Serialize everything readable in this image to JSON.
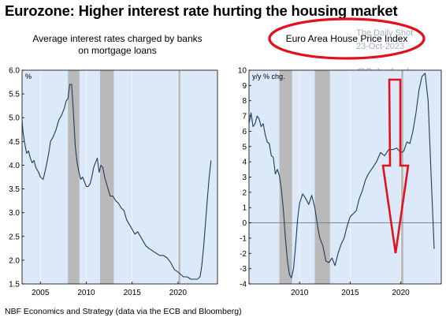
{
  "main_title": "Eurozone: Higher interest rate hurting the housing market",
  "footer": "NBF Economics and Strategy (data via the ECB and Bloomberg)",
  "watermark": {
    "site": "The Daily Shot",
    "date": "23-Oct-2023",
    "handle": "@SoberLook"
  },
  "colors": {
    "plot_bg": "#dce9f8",
    "line": "#1f3a5a",
    "recession": "#b9b9b9",
    "annotation": "#e3111d"
  },
  "chart_data": [
    {
      "type": "line",
      "subtitle_line1": "Average interest rates charged by banks",
      "subtitle_line2": "on mortgage loans",
      "unit_label": "%",
      "ylim": [
        1.5,
        6.0
      ],
      "xlim": [
        2003,
        2024.3
      ],
      "yticks": [
        "1.5",
        "2.0",
        "2.5",
        "3.0",
        "3.5",
        "4.0",
        "4.5",
        "5.0",
        "5.5",
        "6.0"
      ],
      "xticks": [
        "2005",
        "2010",
        "2015",
        "2020"
      ],
      "recessions": [
        [
          2008.0,
          2009.25
        ],
        [
          2011.5,
          2013.0
        ],
        [
          2020.0,
          2020.25
        ]
      ],
      "series": [
        {
          "x": [
            2003.0,
            2003.1,
            2003.3,
            2003.5,
            2003.7,
            2003.9,
            2004.1,
            2004.3,
            2004.5,
            2004.8,
            2005.0,
            2005.3,
            2005.6,
            2005.9,
            2006.1,
            2006.4,
            2006.7,
            2007.0,
            2007.3,
            2007.6,
            2007.8,
            2008.0,
            2008.2,
            2008.4,
            2008.6,
            2008.8,
            2009.0,
            2009.2,
            2009.4,
            2009.6,
            2009.8,
            2010.0,
            2010.2,
            2010.4,
            2010.6,
            2010.8,
            2011.0,
            2011.2,
            2011.4,
            2011.6,
            2011.8,
            2012.0,
            2012.3,
            2012.6,
            2012.9,
            2013.2,
            2013.5,
            2013.8,
            2014.1,
            2014.4,
            2014.7,
            2015.0,
            2015.3,
            2015.6,
            2015.9,
            2016.2,
            2016.5,
            2016.8,
            2017.2,
            2017.6,
            2018.0,
            2018.4,
            2018.8,
            2019.2,
            2019.6,
            2020.0,
            2020.3,
            2020.6,
            2021.0,
            2021.4,
            2021.8,
            2022.1,
            2022.4,
            2022.6,
            2022.8,
            2023.0,
            2023.2,
            2023.4,
            2023.6
          ],
          "y": [
            4.95,
            4.7,
            4.45,
            4.25,
            4.3,
            4.15,
            4.05,
            4.1,
            3.95,
            3.85,
            3.75,
            3.7,
            3.95,
            4.25,
            4.5,
            4.6,
            4.75,
            4.95,
            5.05,
            5.2,
            5.35,
            5.4,
            5.7,
            5.7,
            5.1,
            4.4,
            4.05,
            3.85,
            3.7,
            3.75,
            3.65,
            3.55,
            3.55,
            3.6,
            3.75,
            3.95,
            4.05,
            4.15,
            3.85,
            4.0,
            3.95,
            3.75,
            3.55,
            3.35,
            3.35,
            3.25,
            3.2,
            3.1,
            3.05,
            2.85,
            2.75,
            2.65,
            2.55,
            2.6,
            2.5,
            2.4,
            2.3,
            2.25,
            2.2,
            2.15,
            2.1,
            2.1,
            2.05,
            1.95,
            1.8,
            1.75,
            1.7,
            1.65,
            1.65,
            1.6,
            1.6,
            1.6,
            1.65,
            1.9,
            2.3,
            2.8,
            3.3,
            3.75,
            4.1
          ]
        }
      ]
    },
    {
      "type": "line",
      "subtitle_line1": "Euro Area House Price Index",
      "unit_label": "y/y % chg.",
      "ylim": [
        -4,
        10
      ],
      "xlim": [
        2005,
        2024
      ],
      "yticks": [
        "-4",
        "-3",
        "-2",
        "-1",
        "0",
        "1",
        "2",
        "3",
        "4",
        "5",
        "6",
        "7",
        "8",
        "9",
        "10"
      ],
      "xticks": [
        "2010",
        "2015",
        "2020"
      ],
      "recessions": [
        [
          2008.0,
          2009.25
        ],
        [
          2011.5,
          2013.0
        ],
        [
          2020.0,
          2020.25
        ]
      ],
      "series": [
        {
          "x": [
            2005.0,
            2005.2,
            2005.4,
            2005.6,
            2005.8,
            2006.0,
            2006.2,
            2006.4,
            2006.6,
            2006.8,
            2007.0,
            2007.2,
            2007.4,
            2007.6,
            2007.8,
            2008.0,
            2008.2,
            2008.4,
            2008.6,
            2008.8,
            2009.0,
            2009.2,
            2009.4,
            2009.6,
            2009.8,
            2010.0,
            2010.3,
            2010.6,
            2010.9,
            2011.2,
            2011.5,
            2011.8,
            2012.0,
            2012.3,
            2012.6,
            2012.9,
            2013.2,
            2013.5,
            2013.8,
            2014.1,
            2014.4,
            2014.7,
            2015.0,
            2015.3,
            2015.6,
            2015.9,
            2016.2,
            2016.5,
            2016.8,
            2017.2,
            2017.6,
            2018.0,
            2018.4,
            2018.8,
            2019.2,
            2019.6,
            2020.0,
            2020.3,
            2020.6,
            2020.9,
            2021.2,
            2021.5,
            2021.8,
            2022.1,
            2022.4,
            2022.7,
            2023.0,
            2023.3
          ],
          "y": [
            6.5,
            7.2,
            6.3,
            6.5,
            7.0,
            6.8,
            6.3,
            6.5,
            5.8,
            5.3,
            5.2,
            4.4,
            4.3,
            3.2,
            3.5,
            3.1,
            2.2,
            0.8,
            -1.0,
            -2.5,
            -3.4,
            -3.6,
            -3.0,
            -1.5,
            0.2,
            1.3,
            1.9,
            1.6,
            1.2,
            1.8,
            1.0,
            -0.3,
            -1.0,
            -1.5,
            -2.5,
            -2.6,
            -2.3,
            -2.8,
            -2.0,
            -1.4,
            -1.0,
            -0.2,
            0.4,
            0.6,
            0.8,
            1.6,
            2.1,
            2.8,
            3.2,
            3.6,
            4.0,
            4.6,
            4.4,
            4.8,
            4.8,
            4.9,
            4.6,
            4.7,
            5.3,
            5.2,
            6.0,
            7.2,
            8.7,
            9.6,
            9.8,
            8.0,
            3.0,
            -1.7
          ]
        }
      ]
    }
  ]
}
